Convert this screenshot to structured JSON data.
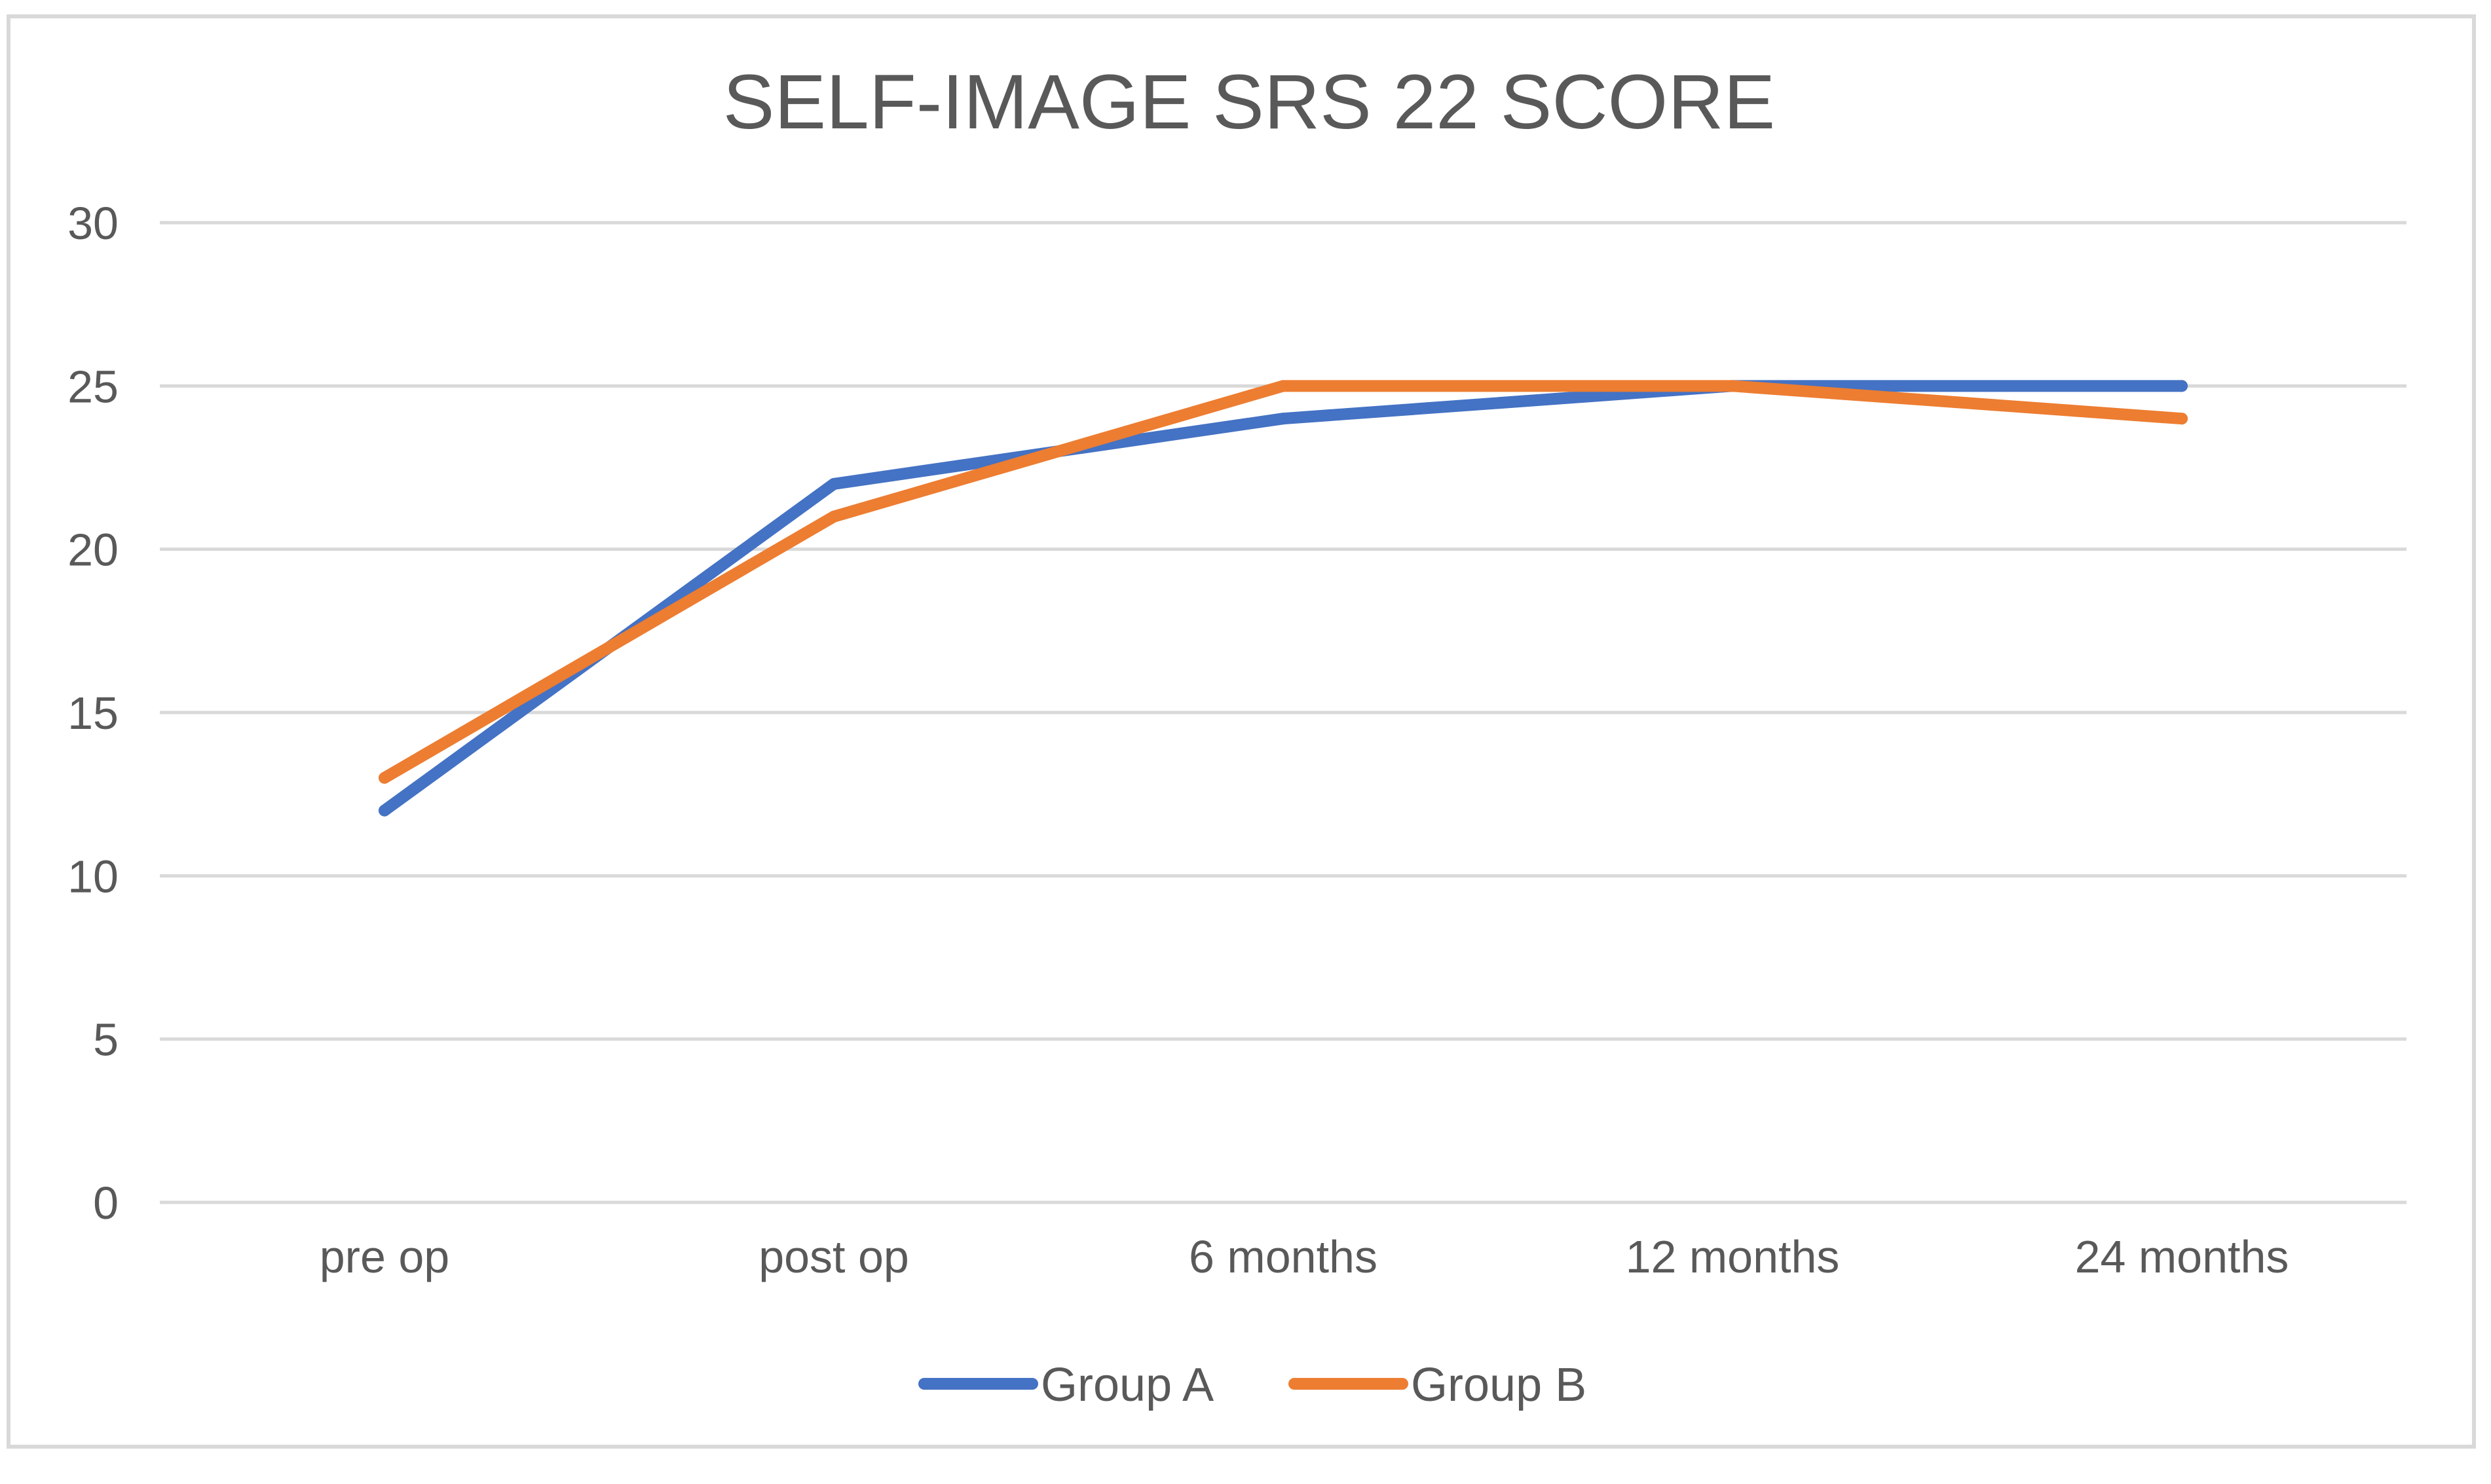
{
  "chart_data": {
    "type": "line",
    "title": "SELF-IMAGE SRS 22 SCORE",
    "xlabel": "",
    "ylabel": "",
    "categories": [
      "pre op",
      "post op",
      "6 months",
      "12 months",
      "24 months"
    ],
    "ylim": [
      0,
      30
    ],
    "yticks": [
      0,
      5,
      10,
      15,
      20,
      25,
      30
    ],
    "grid": true,
    "legend": "bottom",
    "series": [
      {
        "name": "Group A",
        "values": [
          12,
          22,
          24,
          25,
          25
        ],
        "color": "#4472c4"
      },
      {
        "name": "Group B",
        "values": [
          13,
          21,
          25,
          25,
          24
        ],
        "color": "#ed7d31"
      }
    ]
  }
}
